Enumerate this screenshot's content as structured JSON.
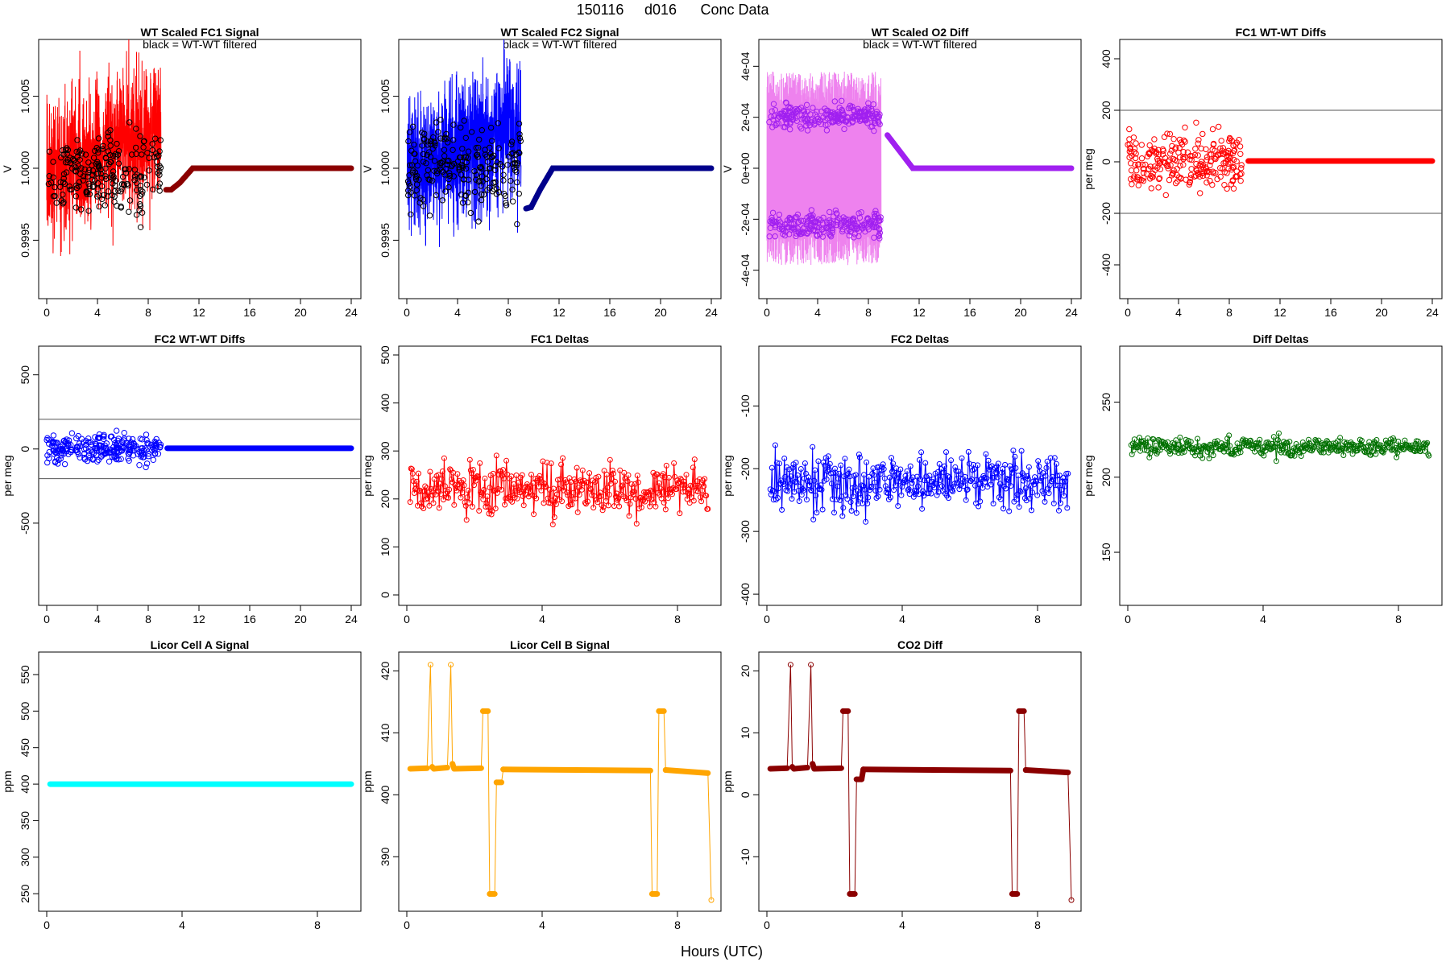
{
  "figure": {
    "title_parts": [
      "150116",
      "d016",
      "Conc Data"
    ],
    "xlabel": "Hours (UTC)"
  },
  "chart_data": [
    {
      "type": "line",
      "title": "WT Scaled FC1 Signal",
      "note": "black = WT-WT filtered",
      "ylabel": "V",
      "color": "#ff0000",
      "xlim": [
        0,
        24
      ],
      "ylim": [
        0.99915,
        1.00085
      ],
      "xticks": [
        0,
        4,
        8,
        12,
        16,
        20,
        24
      ],
      "yticks": [
        0.9995,
        1.0,
        1.0005
      ],
      "ytick_labels": [
        "0.9995",
        "1.0000",
        "1.0005"
      ],
      "series": [
        {
          "name": "raw",
          "kind": "noise",
          "x": [
            0,
            9
          ],
          "center": [
            0.99995,
            1.0003
          ],
          "spread": 0.0005
        },
        {
          "name": "WT-WT filtered",
          "kind": "points",
          "color": "#000000",
          "x": [
            0.1,
            9
          ],
          "center": [
            0.99995,
            1.0003
          ],
          "spread": 0.0003
        },
        {
          "name": "settled",
          "kind": "curve",
          "color": "#8b0000",
          "x": [
            9.4,
            9.8,
            10.5,
            11.5,
            24
          ],
          "y": [
            0.99985,
            0.99985,
            0.9999,
            1.0,
            1.0
          ]
        }
      ]
    },
    {
      "type": "line",
      "title": "WT Scaled FC2 Signal",
      "note": "black = WT-WT filtered",
      "ylabel": "V",
      "color": "#0000ff",
      "xlim": [
        0,
        24
      ],
      "ylim": [
        0.99915,
        1.00085
      ],
      "xticks": [
        0,
        4,
        8,
        12,
        16,
        20,
        24
      ],
      "yticks": [
        0.9995,
        1.0,
        1.0005
      ],
      "ytick_labels": [
        "0.9995",
        "1.0000",
        "1.0005"
      ],
      "series": [
        {
          "name": "raw",
          "kind": "noise",
          "x": [
            0,
            9
          ],
          "center": [
            1.0,
            1.0003
          ],
          "spread": 0.0005
        },
        {
          "name": "WT-WT filtered",
          "kind": "points",
          "color": "#000000",
          "x": [
            0.1,
            9
          ],
          "center": [
            1.0,
            1.0003
          ],
          "spread": 0.0003
        },
        {
          "name": "settled",
          "kind": "curve",
          "color": "#00008b",
          "x": [
            9.4,
            9.8,
            10.5,
            11.5,
            24
          ],
          "y": [
            0.99972,
            0.99973,
            0.99985,
            1.0,
            1.0
          ]
        }
      ]
    },
    {
      "type": "line",
      "title": "WT Scaled O2 Diff",
      "note": "black = WT-WT filtered",
      "ylabel": "V",
      "color": "#ee82ee",
      "xlim": [
        0,
        24
      ],
      "ylim": [
        -0.00048,
        0.00048
      ],
      "xticks": [
        0,
        4,
        8,
        12,
        16,
        20,
        24
      ],
      "yticks": [
        -0.0004,
        -0.0002,
        0,
        0.0002,
        0.0004
      ],
      "ytick_labels": [
        "-4e-04",
        "-2e-04",
        "0e+00",
        "2e-04",
        "4e-04"
      ],
      "series": [
        {
          "name": "raw",
          "kind": "band",
          "x": [
            0,
            9
          ],
          "low": -0.00038,
          "high": 0.00038
        },
        {
          "name": "upper cluster",
          "kind": "points",
          "color": "#a020f0",
          "x": [
            0.1,
            9
          ],
          "center": [
            0.0002,
            0.0002
          ],
          "spread": 5e-05
        },
        {
          "name": "lower cluster",
          "kind": "points",
          "color": "#a020f0",
          "x": [
            0.1,
            9
          ],
          "center": [
            -0.00022,
            -0.00022
          ],
          "spread": 5e-05
        },
        {
          "name": "settled",
          "kind": "curve",
          "color": "#a020f0",
          "x": [
            9.5,
            11.5,
            24
          ],
          "y": [
            0.00013,
            0.0,
            0.0
          ]
        }
      ]
    },
    {
      "type": "scatter",
      "title": "FC1 WT-WT Diffs",
      "ylabel": "per meg",
      "color": "#ff0000",
      "xlim": [
        0,
        24
      ],
      "ylim": [
        -500,
        450
      ],
      "xticks": [
        0,
        4,
        8,
        12,
        16,
        20,
        24
      ],
      "yticks": [
        -400,
        -200,
        0,
        200,
        400
      ],
      "ytick_labels": [
        "-400",
        "-200",
        "0",
        "200",
        "400"
      ],
      "hlines": [
        200,
        -200
      ],
      "series": [
        {
          "name": "scatter",
          "kind": "scatter",
          "x": [
            0,
            9
          ],
          "center": [
            0,
            0
          ],
          "spread": 100
        },
        {
          "name": "settled",
          "kind": "dense",
          "x": [
            9.5,
            24
          ],
          "y": 3
        }
      ]
    },
    {
      "type": "scatter",
      "title": "FC2 WT-WT Diffs",
      "ylabel": "per meg",
      "color": "#0000ff",
      "xlim": [
        0,
        24
      ],
      "ylim": [
        -1000,
        650
      ],
      "xticks": [
        0,
        4,
        8,
        12,
        16,
        20,
        24
      ],
      "yticks": [
        -500,
        0,
        500
      ],
      "ytick_labels": [
        "-500",
        "0",
        "500"
      ],
      "hlines": [
        200,
        -200
      ],
      "series": [
        {
          "name": "scatter",
          "kind": "scatter",
          "x": [
            0,
            9
          ],
          "center": [
            0,
            0
          ],
          "spread": 100
        },
        {
          "name": "settled",
          "kind": "dense",
          "x": [
            9.5,
            24
          ],
          "y": 5
        }
      ]
    },
    {
      "type": "line",
      "title": "FC1 Deltas",
      "ylabel": "per meg",
      "color": "#ff0000",
      "xlim": [
        0,
        9
      ],
      "ylim": [
        -5,
        505
      ],
      "xticks": [
        0,
        4,
        8
      ],
      "yticks": [
        0,
        100,
        200,
        300,
        400,
        500
      ],
      "ytick_labels": [
        "0",
        "100",
        "200",
        "300",
        "400",
        "500"
      ],
      "series": [
        {
          "name": "deltas",
          "kind": "linepoints",
          "x": [
            0.1,
            8.9
          ],
          "center": [
            220,
            220
          ],
          "spread": 55
        }
      ]
    },
    {
      "type": "line",
      "title": "FC2 Deltas",
      "ylabel": "per meg",
      "color": "#0000ff",
      "xlim": [
        0,
        9
      ],
      "ylim": [
        -405,
        -15
      ],
      "xticks": [
        0,
        4,
        8
      ],
      "yticks": [
        -400,
        -300,
        -200,
        -100
      ],
      "ytick_labels": [
        "-400",
        "-300",
        "-200",
        "-100"
      ],
      "series": [
        {
          "name": "deltas",
          "kind": "linepoints",
          "x": [
            0.1,
            8.9
          ],
          "center": [
            -220,
            -220
          ],
          "spread": 45
        }
      ]
    },
    {
      "type": "line",
      "title": "Diff Deltas",
      "ylabel": "per meg",
      "color": "#007000",
      "xlim": [
        0,
        9
      ],
      "ylim": [
        120,
        283
      ],
      "xticks": [
        0,
        4,
        8
      ],
      "yticks": [
        150,
        200,
        250
      ],
      "ytick_labels": [
        "150",
        "200",
        "250"
      ],
      "series": [
        {
          "name": "deltas",
          "kind": "linepoints",
          "x": [
            0.1,
            8.9
          ],
          "center": [
            220,
            220
          ],
          "spread": 6
        }
      ]
    },
    {
      "type": "line",
      "title": "Licor Cell A Signal",
      "ylabel": "ppm",
      "color": "#00ffff",
      "xlim": [
        0,
        9
      ],
      "ylim": [
        237,
        572
      ],
      "xticks": [
        0,
        4,
        8
      ],
      "yticks": [
        250,
        300,
        350,
        400,
        450,
        500,
        550
      ],
      "ytick_labels": [
        "250",
        "300",
        "350",
        "400",
        "450",
        "500",
        "550"
      ],
      "series": [
        {
          "name": "signal",
          "kind": "dense",
          "x": [
            0.1,
            9
          ],
          "y": 400
        }
      ]
    },
    {
      "type": "line",
      "title": "Licor Cell B Signal",
      "ylabel": "ppm",
      "color": "#ffa500",
      "xlim": [
        0,
        9
      ],
      "ylim": [
        382.5,
        422
      ],
      "xticks": [
        0,
        4,
        8
      ],
      "yticks": [
        390,
        400,
        410,
        420
      ],
      "ytick_labels": [
        "390",
        "400",
        "410",
        "420"
      ],
      "series": [
        {
          "name": "signal",
          "kind": "steps",
          "x": [
            0.1,
            0.6,
            0.7,
            0.75,
            0.8,
            1.2,
            1.3,
            1.35,
            1.4,
            2.2,
            2.25,
            2.4,
            2.45,
            2.6,
            2.65,
            2.8,
            2.85,
            7.2,
            7.25,
            7.4,
            7.45,
            7.6,
            7.65,
            8.9,
            9.0
          ],
          "y": [
            404.2,
            404.3,
            421,
            404.5,
            404.2,
            404.4,
            421,
            405,
            404.2,
            404.3,
            413.5,
            413.5,
            384,
            384,
            402,
            402,
            404.1,
            403.9,
            384,
            384,
            413.5,
            413.5,
            404,
            403.5,
            383
          ]
        }
      ]
    },
    {
      "type": "line",
      "title": "CO2 Diff",
      "ylabel": "ppm",
      "color": "#8b0000",
      "xlim": [
        0,
        9
      ],
      "ylim": [
        -17.5,
        22
      ],
      "xticks": [
        0,
        4,
        8
      ],
      "yticks": [
        -10,
        0,
        10,
        20
      ],
      "ytick_labels": [
        "-10",
        "0",
        "10",
        "20"
      ],
      "series": [
        {
          "name": "signal",
          "kind": "steps",
          "x": [
            0.1,
            0.6,
            0.7,
            0.75,
            0.8,
            1.2,
            1.3,
            1.35,
            1.4,
            2.2,
            2.25,
            2.4,
            2.45,
            2.6,
            2.65,
            2.8,
            2.85,
            7.2,
            7.25,
            7.4,
            7.45,
            7.6,
            7.65,
            8.9,
            9.0
          ],
          "y": [
            4.2,
            4.3,
            21,
            4.5,
            4.2,
            4.4,
            21,
            5,
            4.2,
            4.3,
            13.5,
            13.5,
            -16,
            -16,
            2.5,
            2.5,
            4.1,
            3.9,
            -16,
            -16,
            13.5,
            13.5,
            4,
            3.6,
            -17
          ]
        }
      ]
    }
  ]
}
